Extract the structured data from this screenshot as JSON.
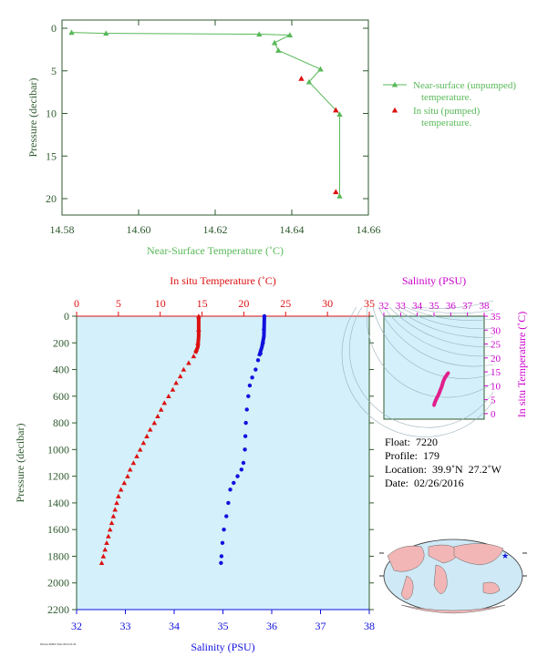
{
  "colors": {
    "near_surface": "#58b858",
    "in_situ_red": "#dd1111",
    "salinity_blue": "#1111dd",
    "magenta": "#cc00cc",
    "axis_green": "#2f5a2f",
    "panel_bg": "#d4f0fa",
    "land": "#f2b6b6",
    "ocean": "#cfe9f6"
  },
  "chart_data": [
    {
      "id": "near_surface_panel",
      "type": "scatter",
      "xlabel": "Near-Surface Temperature (˚C)",
      "ylabel": "Pressure (decibar)",
      "xlim": [
        14.58,
        14.66
      ],
      "ylim": [
        22,
        -1
      ],
      "x_ticks": [
        "14.58",
        "14.60",
        "14.62",
        "14.64",
        "14.66"
      ],
      "y_ticks": [
        "0",
        "5",
        "10",
        "15",
        "20"
      ],
      "legend_position": "right",
      "series": [
        {
          "name": "Near-surface (unpumped) temperature.",
          "legend_lines": [
            "Near-surface (unpumped)",
            "temperature."
          ],
          "marker": "triangle-line",
          "points": [
            [
              14.5825,
              0.5
            ],
            [
              14.5915,
              0.6
            ],
            [
              14.6315,
              0.7
            ],
            [
              14.6395,
              0.8
            ],
            [
              14.6355,
              1.7
            ],
            [
              14.6365,
              2.6
            ],
            [
              14.6475,
              4.8
            ],
            [
              14.6445,
              6.3
            ],
            [
              14.6525,
              10.1
            ],
            [
              14.6525,
              19.7
            ]
          ]
        },
        {
          "name": "In situ (pumped) temperature.",
          "legend_lines": [
            "In situ (pumped)",
            "temperature."
          ],
          "marker": "triangle",
          "points": [
            [
              14.6425,
              5.9
            ],
            [
              14.6515,
              9.6
            ],
            [
              14.6515,
              19.2
            ]
          ]
        }
      ]
    },
    {
      "id": "profile_panel",
      "type": "scatter",
      "top_axis_label": "In situ Temperature (˚C)",
      "bottom_axis_label": "Salinity (PSU)",
      "ylabel": "Pressure (decibar)",
      "temperature_xlim": [
        0,
        35
      ],
      "salinity_xlim": [
        32,
        38
      ],
      "ylim": [
        2200,
        0
      ],
      "temperature_ticks": [
        "0",
        "5",
        "10",
        "15",
        "20",
        "25",
        "30",
        "35"
      ],
      "salinity_ticks": [
        "32",
        "33",
        "34",
        "35",
        "36",
        "37",
        "38"
      ],
      "y_ticks": [
        "0",
        "200",
        "400",
        "600",
        "800",
        "1000",
        "1200",
        "1400",
        "1600",
        "1800",
        "2000",
        "2200"
      ],
      "temperature_profile": [
        [
          14.6,
          0
        ],
        [
          14.6,
          100
        ],
        [
          14.5,
          200
        ],
        [
          14.3,
          250
        ],
        [
          14.0,
          300
        ],
        [
          13.4,
          350
        ],
        [
          12.8,
          400
        ],
        [
          12.4,
          450
        ],
        [
          11.9,
          500
        ],
        [
          11.5,
          550
        ],
        [
          11.0,
          600
        ],
        [
          10.5,
          650
        ],
        [
          10.1,
          700
        ],
        [
          9.7,
          750
        ],
        [
          9.3,
          800
        ],
        [
          8.8,
          850
        ],
        [
          8.4,
          900
        ],
        [
          8.0,
          950
        ],
        [
          7.6,
          1000
        ],
        [
          7.2,
          1050
        ],
        [
          6.8,
          1100
        ],
        [
          6.4,
          1150
        ],
        [
          6.1,
          1200
        ],
        [
          5.7,
          1250
        ],
        [
          5.3,
          1300
        ],
        [
          5.0,
          1350
        ],
        [
          4.8,
          1400
        ],
        [
          4.6,
          1450
        ],
        [
          4.4,
          1500
        ],
        [
          4.2,
          1550
        ],
        [
          4.0,
          1600
        ],
        [
          3.8,
          1650
        ],
        [
          3.6,
          1700
        ],
        [
          3.4,
          1750
        ],
        [
          3.2,
          1800
        ],
        [
          3.0,
          1850
        ]
      ],
      "salinity_profile": [
        [
          35.85,
          0
        ],
        [
          35.84,
          100
        ],
        [
          35.82,
          200
        ],
        [
          35.77,
          280
        ],
        [
          35.72,
          330
        ],
        [
          35.67,
          400
        ],
        [
          35.6,
          460
        ],
        [
          35.55,
          520
        ],
        [
          35.52,
          600
        ],
        [
          35.49,
          700
        ],
        [
          35.47,
          800
        ],
        [
          35.46,
          900
        ],
        [
          35.45,
          1000
        ],
        [
          35.42,
          1100
        ],
        [
          35.38,
          1150
        ],
        [
          35.3,
          1200
        ],
        [
          35.22,
          1250
        ],
        [
          35.15,
          1300
        ],
        [
          35.11,
          1400
        ],
        [
          35.07,
          1500
        ],
        [
          35.02,
          1600
        ],
        [
          34.99,
          1700
        ],
        [
          34.97,
          1800
        ],
        [
          34.96,
          1850
        ]
      ]
    },
    {
      "id": "ts_inset",
      "type": "scatter",
      "top_axis_label": "Salinity (PSU)",
      "right_axis_label": "In situ Temperature (˚C)",
      "salinity_xlim": [
        32,
        38
      ],
      "temperature_ylim": [
        -2,
        35
      ],
      "salinity_ticks": [
        "32",
        "33",
        "34",
        "35",
        "36",
        "37",
        "38"
      ],
      "temperature_ticks": [
        "0",
        "5",
        "10",
        "15",
        "20",
        "25",
        "30",
        "35"
      ],
      "points": [
        [
          35.0,
          3.0
        ],
        [
          35.05,
          4.0
        ],
        [
          35.12,
          5.0
        ],
        [
          35.2,
          6.0
        ],
        [
          35.3,
          7.2
        ],
        [
          35.38,
          8.5
        ],
        [
          35.45,
          9.5
        ],
        [
          35.5,
          10.5
        ],
        [
          35.55,
          11.5
        ],
        [
          35.62,
          12.5
        ],
        [
          35.7,
          13.3
        ],
        [
          35.78,
          14.0
        ],
        [
          35.85,
          14.6
        ]
      ]
    }
  ],
  "float_info": {
    "float": "Float:  7220",
    "profile": "Profile:  179",
    "location": "Location:  39.9˚N  27.2˚W",
    "date": "Date:  02/26/2016"
  },
  "map": {
    "marker": "★",
    "lat": 39.9,
    "lon": -27.2
  },
  "footer_code": "NOAA-PMEL/TAO  2016-02-26"
}
